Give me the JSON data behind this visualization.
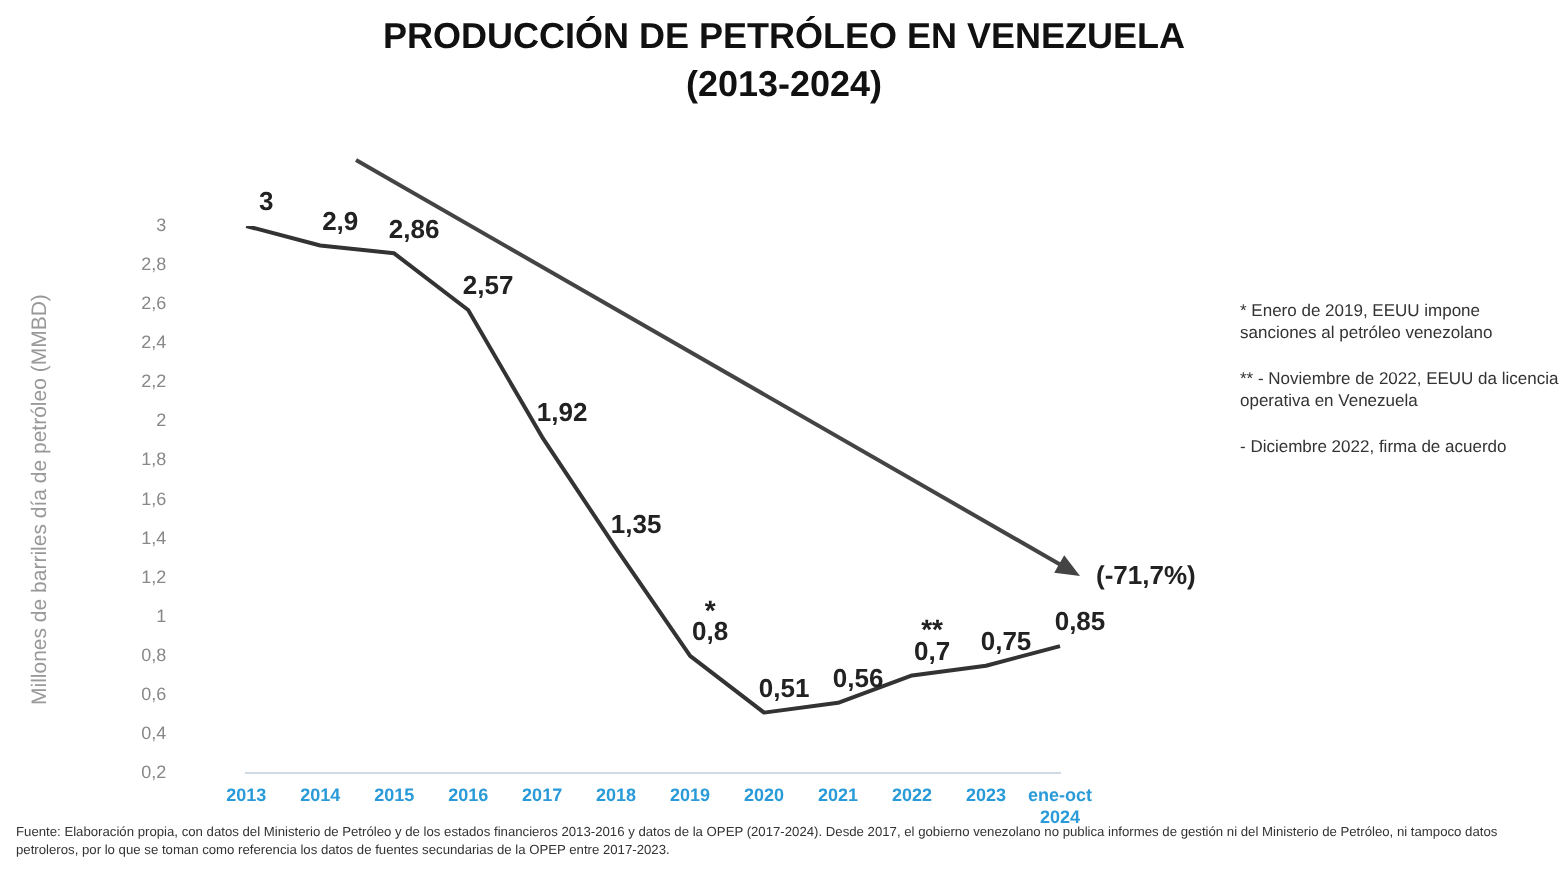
{
  "chart_data": {
    "type": "line",
    "title": "PRODUCCIÓN DE PETRÓLEO EN VENEZUELA",
    "subtitle": "(2013-2024)",
    "ylabel": "Millones de barriles día de petróleo (MMBD)",
    "categories": [
      "2013",
      "2014",
      "2015",
      "2016",
      "2017",
      "2018",
      "2019",
      "2020",
      "2021",
      "2022",
      "2023",
      "ene-oct 2024"
    ],
    "series": [
      {
        "color": "#333333",
        "values": [
          3,
          2.9,
          2.86,
          2.57,
          1.92,
          1.35,
          0.8,
          0.51,
          0.56,
          0.7,
          0.75,
          0.85
        ],
        "value_labels": [
          "3",
          "2,9",
          "2,86",
          "2,57",
          "1,92",
          "1,35",
          "0,8",
          "0,51",
          "0,56",
          "0,7",
          "0,75",
          "0,85"
        ]
      }
    ],
    "ylim": [
      0.2,
      3
    ],
    "yticks": [
      {
        "value": 0.2,
        "label": "0,2"
      },
      {
        "value": 0.4,
        "label": "0,4"
      },
      {
        "value": 0.6,
        "label": "0,6"
      },
      {
        "value": 0.8,
        "label": "0,8"
      },
      1,
      {
        "value": 1.2,
        "label": "1,2"
      },
      {
        "value": 1.4,
        "label": "1,4"
      },
      {
        "value": 1.6,
        "label": "1,6"
      },
      {
        "value": 1.8,
        "label": "1,8"
      },
      2,
      {
        "value": 2.2,
        "label": "2,2"
      },
      {
        "value": 2.4,
        "label": "2,4"
      },
      {
        "value": 2.6,
        "label": "2,6"
      },
      {
        "value": 2.8,
        "label": "2,8"
      },
      3
    ],
    "grid": false,
    "legend": false,
    "marker": "none",
    "line_style": "solid",
    "annotations": [
      {
        "text": "*",
        "x": "2019",
        "y": 0.8
      },
      {
        "text": "**",
        "x": "2022",
        "y": 0.7
      },
      "(-71,7%)",
      "* Enero de 2019, EEUU impone sanciones al petróleo venezolano",
      "** - Noviembre de 2022, EEUU da licencia operativa en Venezuela",
      "- Diciembre 2022, firma de acuerdo",
      "Fuente: Elaboración propia, con datos del Ministerio de Petróleo y de los estados financieros 2013-2016 y datos de la OPEP (2017-2024). Desde 2017, el gobierno venezolano no publica informes de gestión ni del Ministerio de Petróleo, ni tampoco datos petroleros, por lo que se toman como referencia los datos de fuentes secundarias de la OPEP entre 2017-2023."
    ]
  }
}
